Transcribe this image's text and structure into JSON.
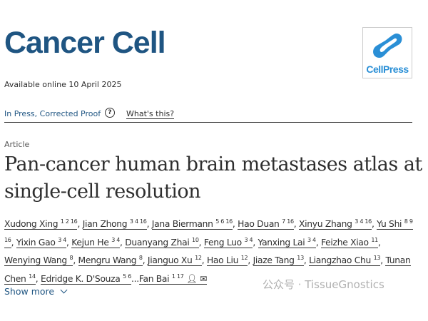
{
  "journal": {
    "title": "Cancer Cell",
    "logo_text": "CellPress"
  },
  "availability": "Available online 10 April 2025",
  "status": {
    "label": "In Press, Corrected Proof",
    "help_icon": "question-circle-icon",
    "whats_this": "What's this?"
  },
  "article": {
    "type": "Article",
    "title": "Pan-cancer human brain metastases atlas at single-cell resolution"
  },
  "authors": [
    {
      "name": "Xudong Xing",
      "aff": "1 2 16"
    },
    {
      "name": "Jian Zhong",
      "aff": "3 4 16"
    },
    {
      "name": "Jana Biermann",
      "aff": "5 6 16"
    },
    {
      "name": "Hao Duan",
      "aff": "7 16"
    },
    {
      "name": "Xinyu Zhang",
      "aff": "3 4 16"
    },
    {
      "name": "Yu Shi",
      "aff": "8 9 16"
    },
    {
      "name": "Yixin Gao",
      "aff": "3 4"
    },
    {
      "name": "Kejun He",
      "aff": "3 4"
    },
    {
      "name": "Duanyang Zhai",
      "aff": "10"
    },
    {
      "name": "Feng Luo",
      "aff": "3 4"
    },
    {
      "name": "Yanxing Lai",
      "aff": "3 4"
    },
    {
      "name": "Feizhe Xiao",
      "aff": "11"
    },
    {
      "name": "Wenying Wang",
      "aff": "8"
    },
    {
      "name": "Mengru Wang",
      "aff": "8"
    },
    {
      "name": "Jianguo Xu",
      "aff": "12"
    },
    {
      "name": "Hao Liu",
      "aff": "12"
    },
    {
      "name": "Jiaze Tang",
      "aff": "13"
    },
    {
      "name": "Liangzhao Chu",
      "aff": "13"
    },
    {
      "name": "Tunan Chen",
      "aff": "14"
    },
    {
      "name": "Edridge K. D'Souza",
      "aff": "5 6"
    },
    {
      "name": "Fan Bai",
      "aff": "1 17"
    }
  ],
  "author_icons": [
    "person-icon",
    "envelope-icon"
  ],
  "show_more": "Show more",
  "watermark": "公众号 · TissueGnostics",
  "colors": {
    "brand": "#1f5582",
    "logo": "#2a8fd6"
  }
}
